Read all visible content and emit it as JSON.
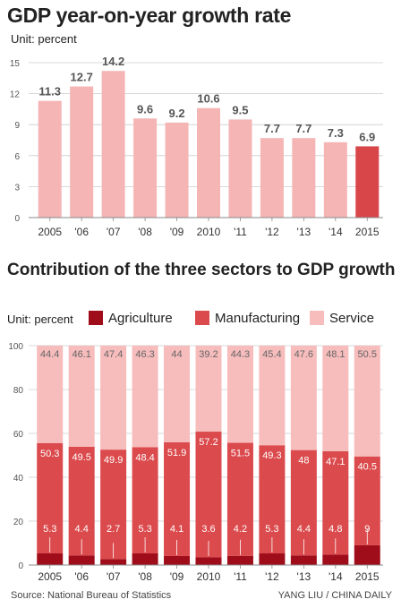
{
  "colors": {
    "growth_bar": "#f5b5b5",
    "growth_bar_latest": "#d9464a",
    "agriculture": "#a00d1a",
    "manufacturing": "#db4a4c",
    "service": "#f7bcbc"
  },
  "chart_data": [
    {
      "type": "bar",
      "title": "GDP year-on-year growth rate",
      "unit": "Unit: percent",
      "categories": [
        "2005",
        "'06",
        "'07",
        "'08",
        "'09",
        "2010",
        "'11",
        "'12",
        "'13",
        "'14",
        "2015"
      ],
      "values": [
        11.3,
        12.7,
        14.2,
        9.6,
        9.2,
        10.6,
        9.5,
        7.7,
        7.7,
        7.3,
        6.9
      ],
      "value_labels": [
        "11.3",
        "12.7",
        "14.2",
        "9.6",
        "9.2",
        "10.6",
        "9.5",
        "7.7",
        "7.7",
        "7.3",
        "6.9"
      ],
      "ylim": [
        0,
        15
      ],
      "yticks": [
        "0",
        "3",
        "6",
        "9",
        "12",
        "15"
      ],
      "grid": true,
      "highlight_last": true
    },
    {
      "type": "bar",
      "stacked": true,
      "title": "Contribution of the three sectors to GDP growth",
      "unit": "Unit: percent",
      "categories": [
        "2005",
        "'06",
        "'07",
        "'08",
        "'09",
        "2010",
        "'11",
        "'12",
        "'13",
        "'14",
        "2015"
      ],
      "legend_position": "top",
      "ylim": [
        0,
        100
      ],
      "yticks": [
        "0",
        "20",
        "40",
        "60",
        "80",
        "100"
      ],
      "grid": true,
      "series": [
        {
          "name": "Agriculture",
          "values": [
            5.3,
            4.4,
            2.7,
            5.3,
            4.1,
            3.6,
            4.2,
            5.3,
            4.4,
            4.8,
            9
          ],
          "labels": [
            "5.3",
            "4.4",
            "2.7",
            "5.3",
            "4.1",
            "3.6",
            "4.2",
            "5.3",
            "4.4",
            "4.8",
            "9"
          ]
        },
        {
          "name": "Manufacturing",
          "values": [
            50.3,
            49.5,
            49.9,
            48.4,
            51.9,
            57.2,
            51.5,
            49.3,
            48,
            47.1,
            40.5
          ],
          "labels": [
            "50.3",
            "49.5",
            "49.9",
            "48.4",
            "51.9",
            "57.2",
            "51.5",
            "49.3",
            "48",
            "47.1",
            "40.5"
          ]
        },
        {
          "name": "Service",
          "values": [
            44.4,
            46.1,
            47.4,
            46.3,
            44,
            39.2,
            44.3,
            45.4,
            47.6,
            48.1,
            50.5
          ],
          "labels": [
            "44.4",
            "46.1",
            "47.4",
            "46.3",
            "44",
            "39.2",
            "44.3",
            "45.4",
            "47.6",
            "48.1",
            "50.5"
          ]
        }
      ]
    }
  ],
  "footer": {
    "source": "Source: National Bureau of Statistics",
    "credit": "YANG LIU / CHINA DAILY"
  }
}
